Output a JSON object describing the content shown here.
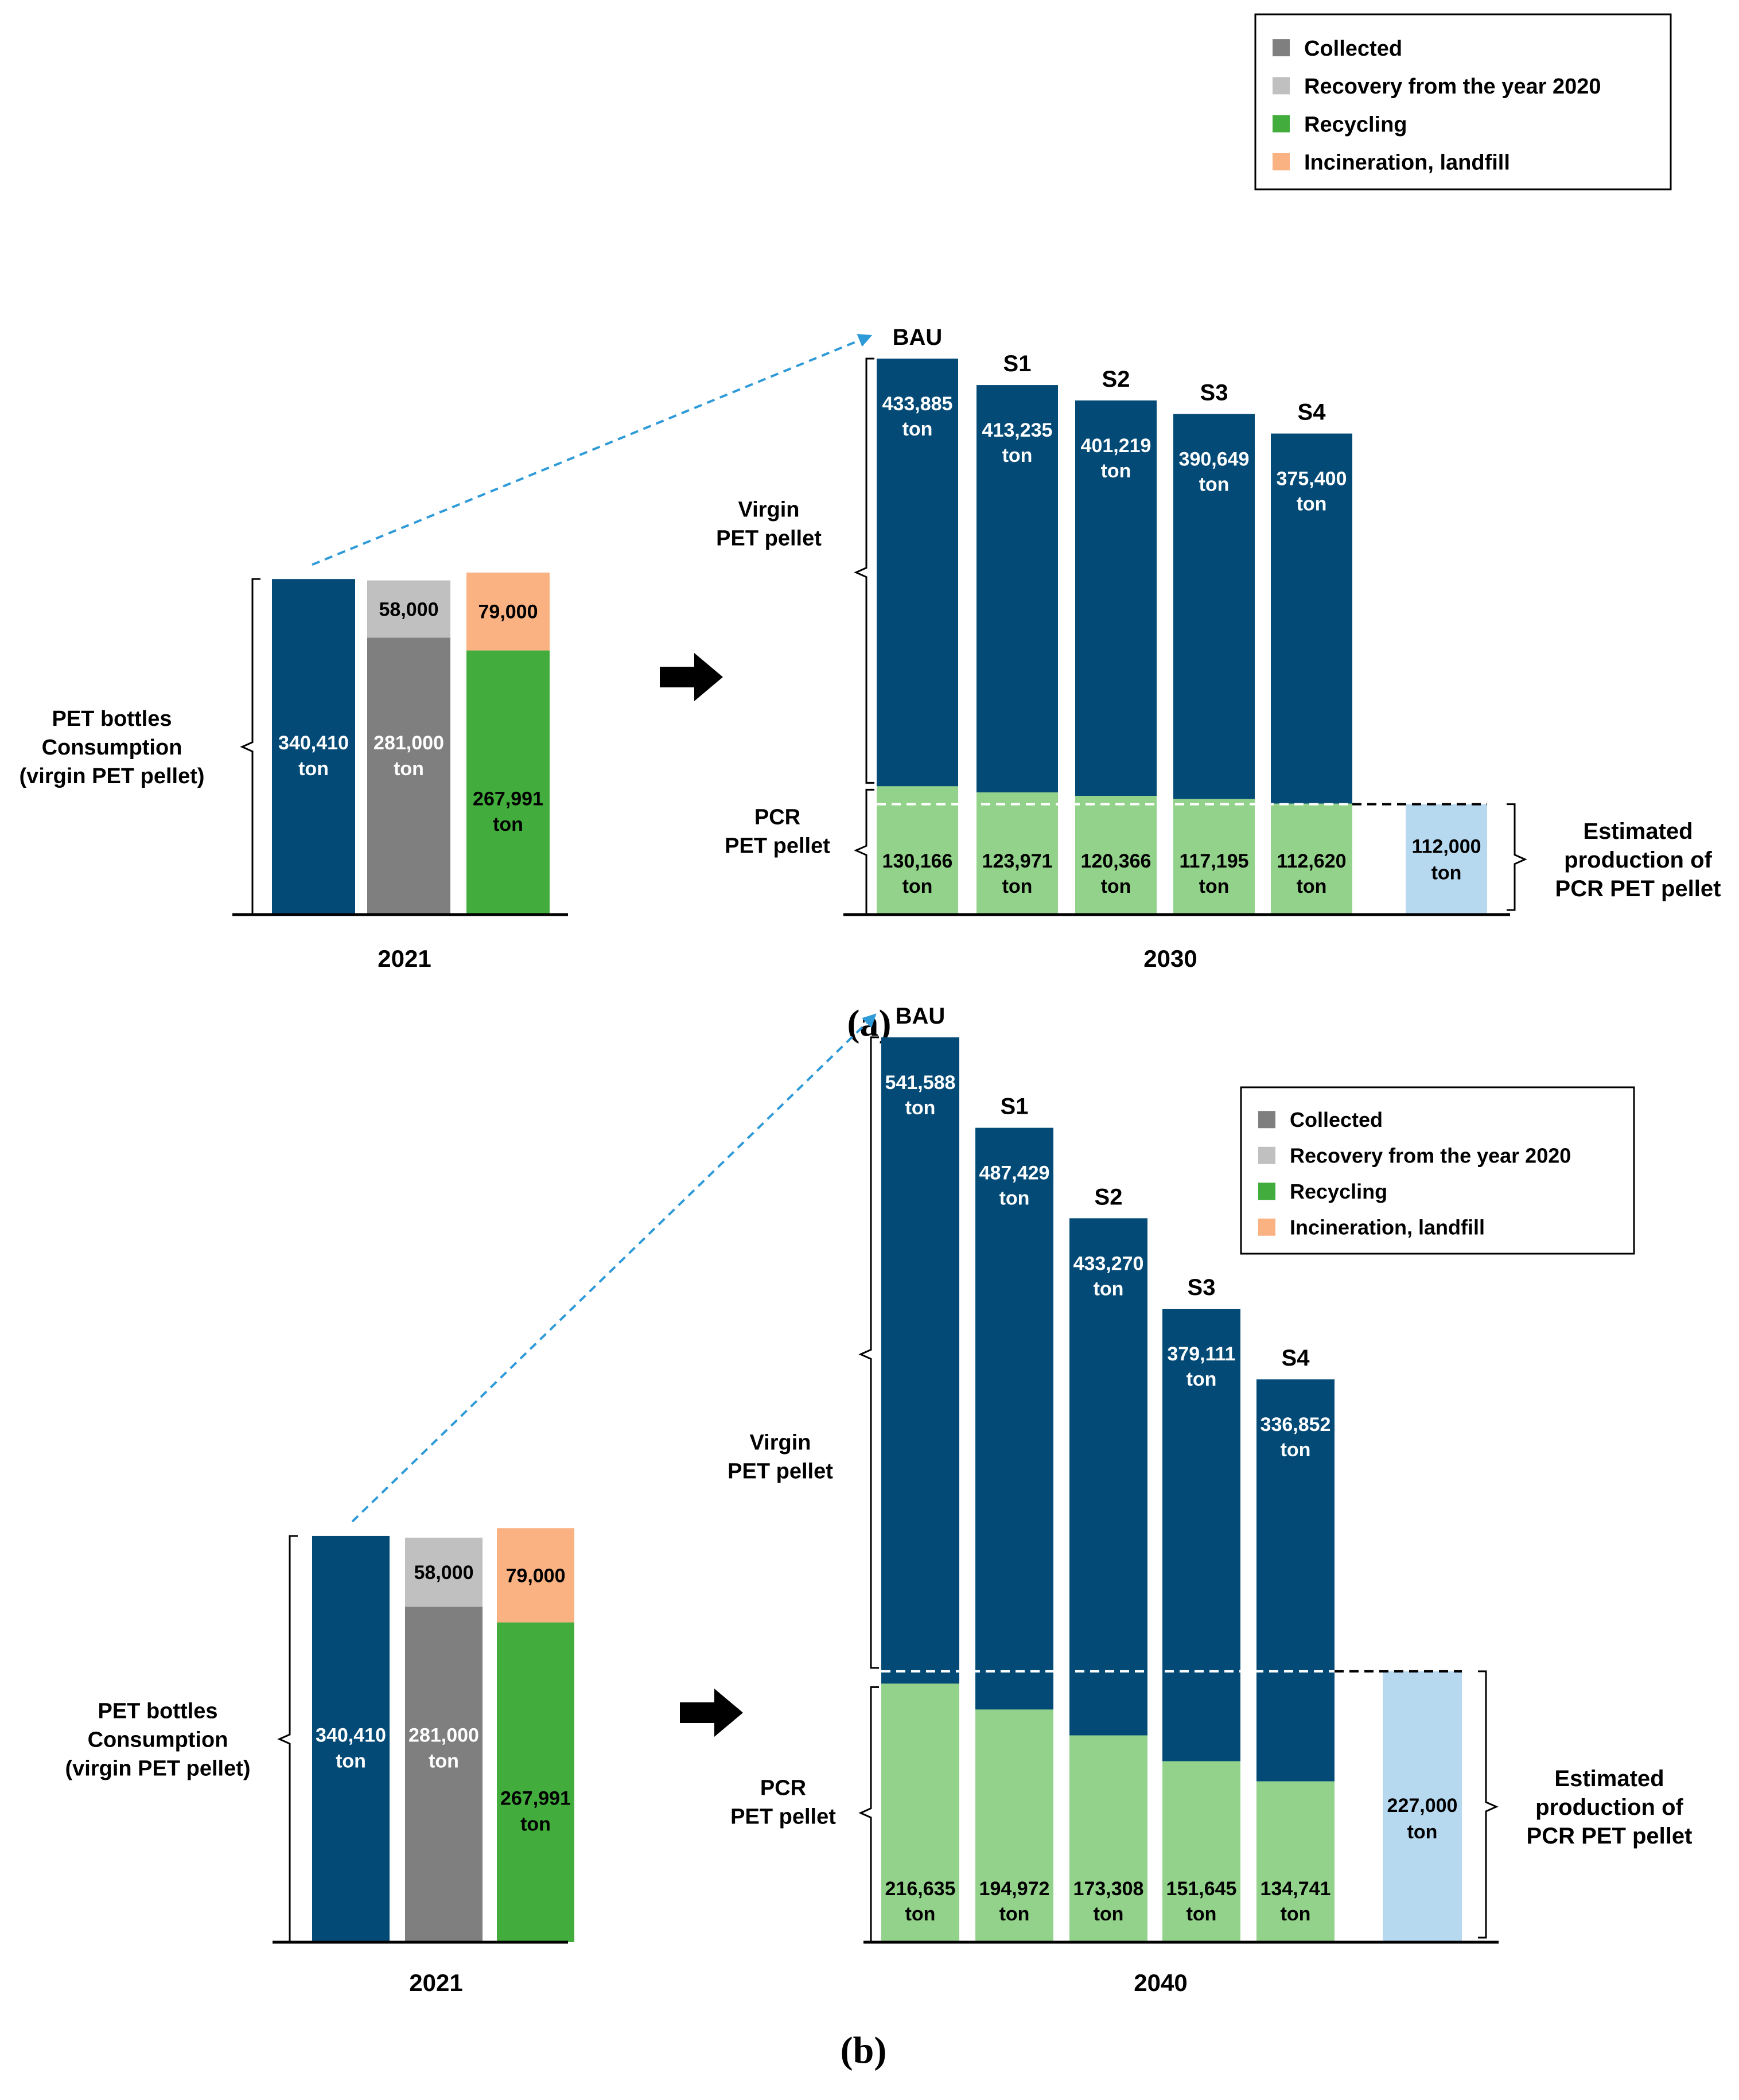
{
  "colors": {
    "virgin": "#034a76",
    "collected": "#7f7f7f",
    "recovery": "#c0c0c0",
    "recycling": "#42ad3d",
    "incineration": "#fbb283",
    "pcr": "#93d28a",
    "estimate": "#b7d9f0",
    "arrow_dashed": "#2e9ad8"
  },
  "chart_data": [
    {
      "type": "bar",
      "panel": "a",
      "caption": "(a)",
      "legend": {
        "position": "top-right",
        "entries": [
          {
            "label": "Collected",
            "color": "#7f7f7f"
          },
          {
            "label": "Recovery from the year 2020",
            "color": "#c0c0c0"
          },
          {
            "label": "Recycling",
            "color": "#42ad3d"
          },
          {
            "label": "Incineration, landfill",
            "color": "#fbb283"
          }
        ]
      },
      "base_year": {
        "label": "2021",
        "bracket_label": [
          "PET bottles",
          "Consumption",
          "(virgin PET pellet)"
        ],
        "consumption": {
          "value": 340410,
          "lines": [
            "340,410",
            "ton"
          ]
        },
        "collected": {
          "value": 281000,
          "lines": [
            "281,000",
            "ton"
          ]
        },
        "recovery": {
          "value": 58000,
          "lines": [
            "58,000"
          ]
        },
        "recycling": {
          "value": 267991,
          "lines": [
            "267,991",
            "ton"
          ]
        },
        "incineration": {
          "value": 79000,
          "lines": [
            "79,000"
          ]
        }
      },
      "target_year": {
        "label": "2030",
        "virgin_label": [
          "Virgin",
          "PET pellet"
        ],
        "pcr_label": [
          "PCR",
          "PET pellet"
        ],
        "categories": [
          "BAU",
          "S1",
          "S2",
          "S3",
          "S4"
        ],
        "series": [
          {
            "name": "Virgin PET pellet",
            "values": [
              433885,
              413235,
              401219,
              390649,
              375400
            ],
            "labels": [
              "433,885",
              "413,235",
              "401,219",
              "390,649",
              "375,400"
            ]
          },
          {
            "name": "PCR PET pellet",
            "values": [
              130166,
              123971,
              120366,
              117195,
              112620
            ],
            "labels": [
              "130,166",
              "123,971",
              "120,366",
              "117,195",
              "112,620"
            ]
          }
        ],
        "unit": "ton",
        "estimate": {
          "value": 112000,
          "lines": [
            "112,000",
            "ton"
          ],
          "label": [
            "Estimated",
            "production of",
            "PCR PET pellet"
          ]
        }
      }
    },
    {
      "type": "bar",
      "panel": "b",
      "caption": "(b)",
      "legend": {
        "position": "top-right",
        "entries": [
          {
            "label": "Collected",
            "color": "#7f7f7f"
          },
          {
            "label": "Recovery from the year 2020",
            "color": "#c0c0c0"
          },
          {
            "label": "Recycling",
            "color": "#42ad3d"
          },
          {
            "label": "Incineration, landfill",
            "color": "#fbb283"
          }
        ]
      },
      "base_year": {
        "label": "2021",
        "bracket_label": [
          "PET bottles",
          "Consumption",
          "(virgin PET pellet)"
        ],
        "consumption": {
          "value": 340410,
          "lines": [
            "340,410",
            "ton"
          ]
        },
        "collected": {
          "value": 281000,
          "lines": [
            "281,000",
            "ton"
          ]
        },
        "recovery": {
          "value": 58000,
          "lines": [
            "58,000"
          ]
        },
        "recycling": {
          "value": 267991,
          "lines": [
            "267,991",
            "ton"
          ]
        },
        "incineration": {
          "value": 79000,
          "lines": [
            "79,000"
          ]
        }
      },
      "target_year": {
        "label": "2040",
        "virgin_label": [
          "Virgin",
          "PET pellet"
        ],
        "pcr_label": [
          "PCR",
          "PET pellet"
        ],
        "categories": [
          "BAU",
          "S1",
          "S2",
          "S3",
          "S4"
        ],
        "series": [
          {
            "name": "Virgin PET pellet",
            "values": [
              541588,
              487429,
              433270,
              379111,
              336852
            ],
            "labels": [
              "541,588",
              "487,429",
              "433,270",
              "379,111",
              "336,852"
            ]
          },
          {
            "name": "PCR PET pellet",
            "values": [
              216635,
              194972,
              173308,
              151645,
              134741
            ],
            "labels": [
              "216,635",
              "194,972",
              "173,308",
              "151,645",
              "134,741"
            ]
          }
        ],
        "unit": "ton",
        "estimate": {
          "value": 227000,
          "lines": [
            "227,000",
            "ton"
          ],
          "label": [
            "Estimated",
            "production of",
            "PCR PET pellet"
          ]
        }
      }
    }
  ]
}
